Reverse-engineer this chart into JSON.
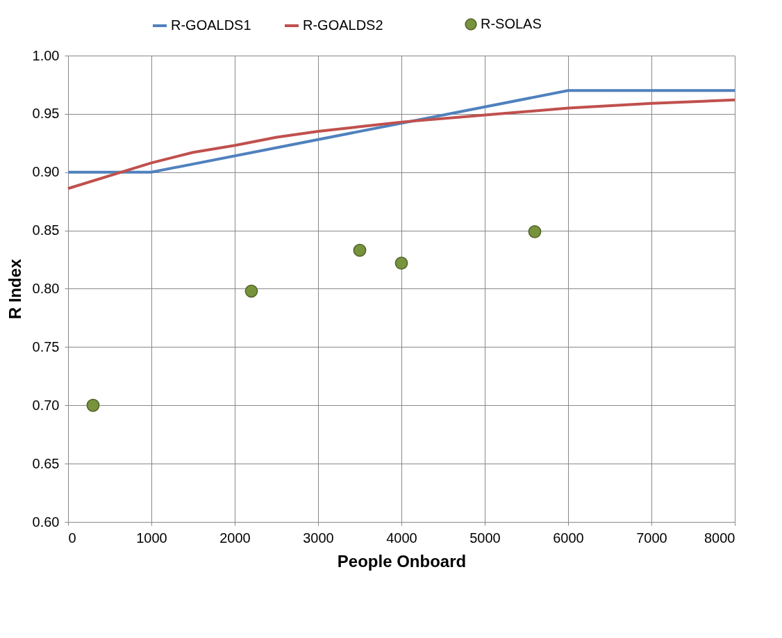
{
  "chart_data": {
    "type": "line",
    "xlabel": "People Onboard",
    "ylabel": "R Index",
    "xlim": [
      0,
      8000
    ],
    "xticks": [
      0,
      1000,
      2000,
      3000,
      4000,
      5000,
      6000,
      7000,
      8000
    ],
    "ylim": [
      0.6,
      1.0
    ],
    "yticks": [
      {
        "value": 0.6,
        "label": "0.60"
      },
      {
        "value": 0.65,
        "label": "0.65"
      },
      {
        "value": 0.7,
        "label": "0.70"
      },
      {
        "value": 0.75,
        "label": "0.75"
      },
      {
        "value": 0.8,
        "label": "0.80"
      },
      {
        "value": 0.85,
        "label": "0.85"
      },
      {
        "value": 0.9,
        "label": "0.90"
      },
      {
        "value": 0.95,
        "label": "0.95"
      },
      {
        "value": 1.0,
        "label": "1.00"
      }
    ],
    "grid": true,
    "legend": "top",
    "series": [
      {
        "name": "R-GOALDS1",
        "color": "#4f81bd",
        "x": [
          0,
          1000,
          6000,
          8000
        ],
        "values": [
          0.9,
          0.9,
          0.97,
          0.97
        ]
      },
      {
        "name": "R-GOALDS2",
        "color": "#c0504d",
        "x": [
          0,
          1000,
          1500,
          2000,
          2500,
          3000,
          3500,
          4000,
          5000,
          6000,
          7000,
          8000
        ],
        "values": [
          0.886,
          0.908,
          0.917,
          0.923,
          0.93,
          0.935,
          0.939,
          0.943,
          0.949,
          0.955,
          0.959,
          0.962
        ]
      },
      {
        "name": "R-SOLAS",
        "type": "scatter",
        "color": "#77933c",
        "marker": "circle",
        "x": [
          300,
          2200,
          3500,
          4000,
          5600
        ],
        "values": [
          0.7,
          0.798,
          0.833,
          0.822,
          0.849
        ]
      }
    ]
  }
}
